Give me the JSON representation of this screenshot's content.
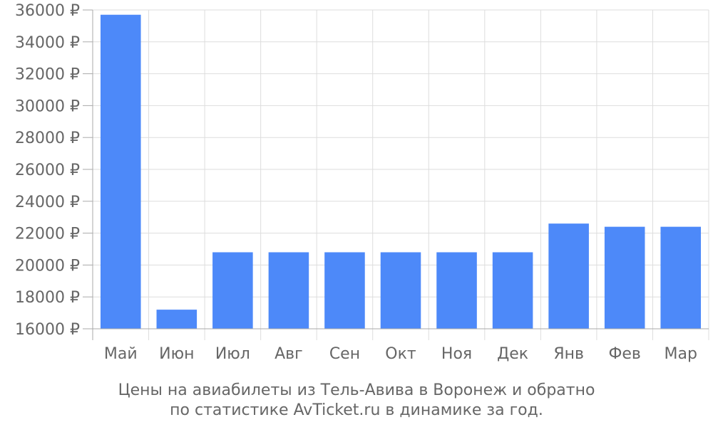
{
  "chart_data": {
    "type": "bar",
    "categories": [
      "Май",
      "Июн",
      "Июл",
      "Авг",
      "Сен",
      "Окт",
      "Ноя",
      "Дек",
      "Янв",
      "Фев",
      "Мар"
    ],
    "values": [
      35700,
      17200,
      20800,
      20800,
      20800,
      20800,
      20800,
      20800,
      22600,
      22400,
      22400
    ],
    "ylim": [
      16000,
      36000
    ],
    "yticks": [
      16000,
      18000,
      20000,
      22000,
      24000,
      26000,
      28000,
      30000,
      32000,
      34000,
      36000
    ],
    "ytick_suffix": " ₽",
    "grid": true,
    "colors": {
      "bar": "#4d89f9",
      "grid": "#dddddd",
      "axis": "#aaaaaa",
      "text": "#666666"
    },
    "caption": {
      "line1": "Цены на авиабилеты из Тель-Авива в Воронеж и обратно",
      "line2": "по статистике AvTicket.ru в динамике за год."
    }
  }
}
